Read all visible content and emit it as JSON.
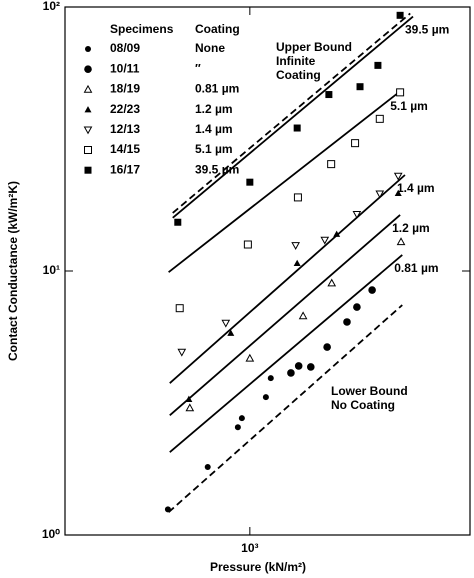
{
  "chart_data": {
    "type": "scatter",
    "x_label": "Pressure (kN/m²)",
    "y_label": "Contact Conductance (kW/m²K)",
    "log_x": true,
    "log_y": true,
    "xlim": [
      200,
      6800
    ],
    "ylim": [
      1,
      100
    ],
    "xticks": [
      {
        "value": 1000,
        "label": "10³"
      }
    ],
    "yticks": [
      {
        "value": 1,
        "label": "10⁰"
      },
      {
        "value": 10,
        "label": "10¹"
      },
      {
        "value": 100,
        "label": "10²"
      }
    ],
    "legend_headers": [
      "Specimens",
      "Coating"
    ],
    "series": [
      {
        "name": "08/09",
        "coating": "None",
        "marker": "dot",
        "color": "#000000",
        "x": [
          490,
          693,
          901,
          933,
          1150,
          1200
        ],
        "values": [
          1.25,
          1.81,
          2.56,
          2.77,
          3.33,
          3.93
        ]
      },
      {
        "name": "10/11",
        "coating": "″",
        "marker": "circle",
        "color": "#000000",
        "x": [
          1430,
          1530,
          1700,
          1960,
          2330,
          2540,
          2900
        ],
        "values": [
          4.11,
          4.37,
          4.33,
          5.15,
          6.41,
          7.3,
          8.47
        ]
      },
      {
        "name": "18/19",
        "coating": "0.81 µm",
        "marker": "triangle-open",
        "color": "#000000",
        "x": [
          593,
          1000,
          1590,
          2040,
          3730
        ],
        "values": [
          3.03,
          4.67,
          6.76,
          9.0,
          12.9
        ]
      },
      {
        "name": "22/23",
        "coating": "1.2 µm",
        "marker": "triangle",
        "color": "#000000",
        "x": [
          588,
          847,
          1510,
          2130,
          3640
        ],
        "values": [
          3.27,
          5.82,
          10.7,
          13.8,
          19.7
        ]
      },
      {
        "name": "12/13",
        "coating": "1.4 µm",
        "marker": "triangle-down-open",
        "color": "#000000",
        "x": [
          553,
          811,
          1490,
          1920,
          2540,
          3100,
          3640
        ],
        "values": [
          4.93,
          6.35,
          12.5,
          13.1,
          16.4,
          19.6,
          22.9
        ]
      },
      {
        "name": "14/15",
        "coating": "5.1 µm",
        "marker": "square-open",
        "color": "#000000",
        "x": [
          543,
          983,
          1520,
          2030,
          2500,
          3100,
          3700
        ],
        "values": [
          7.23,
          12.6,
          19.0,
          25.4,
          30.5,
          37.7,
          47.5
        ]
      },
      {
        "name": "16/17",
        "coating": "39.5 µm",
        "marker": "square",
        "color": "#000000",
        "x": [
          534,
          1000,
          1510,
          1990,
          2610,
          3050,
          3700
        ],
        "values": [
          15.3,
          21.7,
          34.8,
          46.6,
          49.9,
          60.1,
          93
        ]
      }
    ],
    "fits": [
      {
        "dash": true,
        "x": [
          511,
          4040
        ],
        "values": [
          16.6,
          94.5
        ]
      },
      {
        "label": "39.5 µm",
        "dash": false,
        "x": [
          511,
          4140
        ],
        "values": [
          15.9,
          92.0
        ]
      },
      {
        "label": "5.1 µm",
        "dash": false,
        "x": [
          493,
          3640
        ],
        "values": [
          9.9,
          47.3
        ]
      },
      {
        "label": "1.4 µm",
        "dash": false,
        "x": [
          498,
          3860
        ],
        "values": [
          3.76,
          23.1
        ]
      },
      {
        "label": "1.2 µm",
        "dash": false,
        "x": [
          498,
          3700
        ],
        "values": [
          2.84,
          16.3
        ]
      },
      {
        "label": "0.81 µm",
        "dash": false,
        "x": [
          498,
          3770
        ],
        "values": [
          2.06,
          11.5
        ]
      },
      {
        "dash": true,
        "x": [
          493,
          3770
        ],
        "values": [
          1.22,
          7.43
        ]
      }
    ],
    "annotations": [
      {
        "lines": [
          "Upper Bound",
          "Infinite",
          "Coating"
        ]
      },
      {
        "lines": [
          "Lower Bound",
          "No Coating"
        ]
      }
    ]
  }
}
